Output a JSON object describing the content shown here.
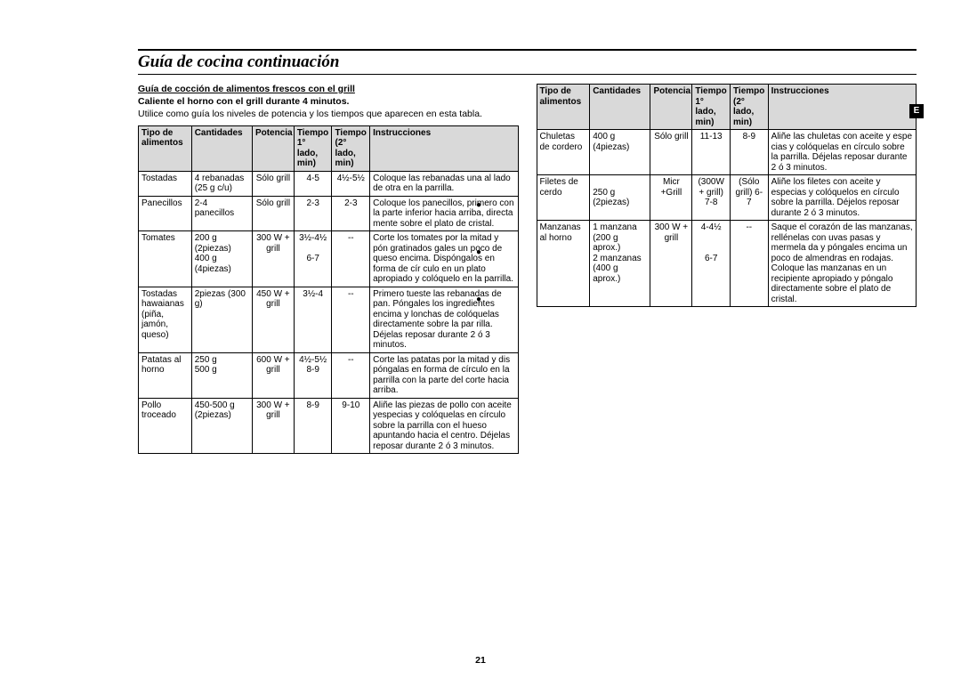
{
  "title": "Guía de cocina continuación",
  "badge": "E",
  "page_number": "21",
  "section": {
    "heading": "Guía de cocción de alimentos frescos con el grill",
    "subcaption": "Caliente el horno con el grill durante 4 minutos.",
    "intro": "Utilice como guía los niveles de potencia y los tiempos que aparecen en esta tabla."
  },
  "headers": {
    "food": "Tipo de alimentos",
    "qty": "Cantidades",
    "power": "Potencia",
    "t1": "Tiempo 1° lado, min)",
    "t2": "Tiempo (2° lado, min)",
    "instr": "Instrucciones"
  },
  "left_rows": [
    {
      "food": "Tostadas",
      "qty": "4 rebanadas (25 g c/u)",
      "power": "Sólo grill",
      "t1": "4-5",
      "t2": "4½-5½",
      "instr": "Coloque las rebanadas una al lado de otra en la parrilla."
    },
    {
      "food": "Panecillos",
      "qty": "2-4 panecillos",
      "power": "Sólo grill",
      "t1": "2-3",
      "t2": "2-3",
      "instr": "Coloque los panecillos, primero con la parte inferior hacia arriba, directa mente sobre el plato de cristal."
    },
    {
      "food": "Tomates",
      "qty": "200 g (2piezas)\n400 g (4piezas)",
      "power": "300 W + grill",
      "t1": "3½-4½\n\n6-7",
      "t2": "--",
      "instr": "Corte los tomates por la mitad y pón gratinados gales un poco de queso encima. Dispóngalos en forma de cír culo en un plato apropiado y colóquelo en la parrilla."
    },
    {
      "food": "Tostadas hawaianas (piña, jamón, queso)",
      "qty": "2piezas (300 g)",
      "power": "450 W + grill",
      "t1": "3½-4",
      "t2": "--",
      "instr": "Primero tueste las rebanadas de pan. Póngales los ingredientes encima y lonchas de colóquelas directamente sobre la par rilla. Déjelas reposar durante 2 ó 3 minutos."
    },
    {
      "food": "Patatas al horno",
      "qty": "250 g\n500 g",
      "power": "600 W + grill",
      "t1": "4½-5½\n8-9",
      "t2": "--",
      "instr": "Corte las patatas por la mitad y dis póngalas en forma de círculo en la parrilla con la parte del corte hacia arriba."
    },
    {
      "food": "Pollo troceado",
      "qty": "450-500 g (2piezas)",
      "power": "300 W + grill",
      "t1": "8-9",
      "t2": "9-10",
      "instr": "Aliñe las piezas de pollo con aceite yespecias y colóquelas en círculo sobre la parrilla con el hueso apuntando hacia el centro. Déjelas reposar durante 2 ó 3 minutos."
    }
  ],
  "right_rows": [
    {
      "food": "Chuletas de cordero",
      "qty": "400 g (4piezas)",
      "power": "Sólo grill",
      "t1": "11-13",
      "t2": "8-9",
      "instr": "Aliñe las chuletas con aceite y espe cias y colóquelas en círculo sobre la parrilla. Déjelas reposar durante 2 ó 3 minutos."
    },
    {
      "food": "Filetes de cerdo",
      "qty": "\n250 g (2piezas)",
      "power": "Micr +Grill",
      "t1": "(300W + grill) 7-8",
      "t2": "(Sólo grill) 6-7",
      "instr": "Aliñe los filetes con aceite y especias y colóquelos en círculo sobre la parrilla. Déjelos reposar durante 2 ó 3 minutos."
    },
    {
      "food": "Manzanas al horno",
      "qty": "1 manzana (200 g aprox.)\n2 manzanas (400 g aprox.)",
      "power": "300 W + grill",
      "t1": "4-4½\n\n\n6-7",
      "t2": "--",
      "instr": "Saque el corazón de las manzanas, rellénelas con uvas pasas y mermela da y póngales encima un poco de almendras en rodajas. Coloque las manzanas en un recipiente apropiado y póngalo directamente sobre el plato de cristal."
    }
  ]
}
